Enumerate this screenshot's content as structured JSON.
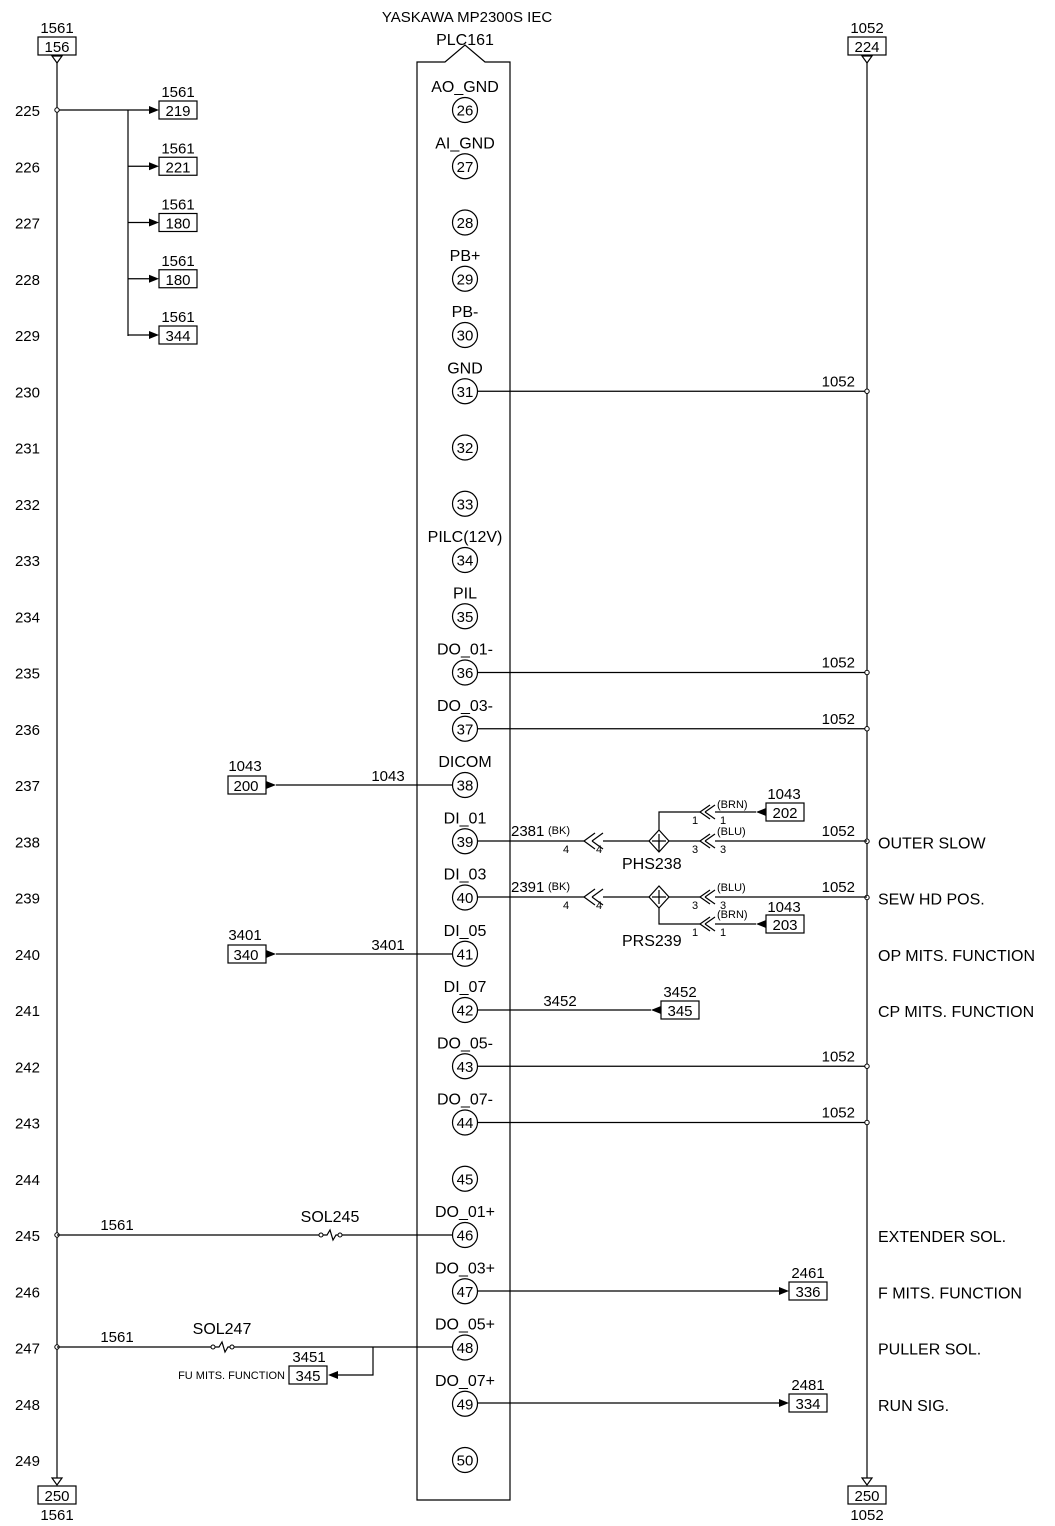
{
  "plc": {
    "title": "YASKAWA MP2300S IEC",
    "id": "PLC161"
  },
  "left_rail": {
    "top_ref_num": "1561",
    "top_ref_page": "156",
    "bottom_ref_num": "1561",
    "bottom_ref_page": "250"
  },
  "right_rail": {
    "top_ref_num": "1052",
    "top_ref_page": "224",
    "bottom_ref_num": "1052",
    "bottom_ref_page": "250"
  },
  "rows": [
    {
      "num": "225",
      "pin": "26",
      "label": "AO_GND",
      "desc": ""
    },
    {
      "num": "226",
      "pin": "27",
      "label": "AI_GND",
      "desc": ""
    },
    {
      "num": "227",
      "pin": "28",
      "label": "",
      "desc": ""
    },
    {
      "num": "228",
      "pin": "29",
      "label": "PB+",
      "desc": ""
    },
    {
      "num": "229",
      "pin": "30",
      "label": "PB-",
      "desc": ""
    },
    {
      "num": "230",
      "pin": "31",
      "label": "GND",
      "desc": ""
    },
    {
      "num": "231",
      "pin": "32",
      "label": "",
      "desc": ""
    },
    {
      "num": "232",
      "pin": "33",
      "label": "",
      "desc": ""
    },
    {
      "num": "233",
      "pin": "34",
      "label": "PILC(12V)",
      "desc": ""
    },
    {
      "num": "234",
      "pin": "35",
      "label": "PIL",
      "desc": ""
    },
    {
      "num": "235",
      "pin": "36",
      "label": "DO_01-",
      "desc": ""
    },
    {
      "num": "236",
      "pin": "37",
      "label": "DO_03-",
      "desc": ""
    },
    {
      "num": "237",
      "pin": "38",
      "label": "DICOM",
      "desc": ""
    },
    {
      "num": "238",
      "pin": "39",
      "label": "DI_01",
      "desc": "OUTER SLOW"
    },
    {
      "num": "239",
      "pin": "40",
      "label": "DI_03",
      "desc": "SEW HD POS."
    },
    {
      "num": "240",
      "pin": "41",
      "label": "DI_05",
      "desc": "OP MITS. FUNCTION"
    },
    {
      "num": "241",
      "pin": "42",
      "label": "DI_07",
      "desc": "CP MITS. FUNCTION"
    },
    {
      "num": "242",
      "pin": "43",
      "label": "DO_05-",
      "desc": ""
    },
    {
      "num": "243",
      "pin": "44",
      "label": "DO_07-",
      "desc": ""
    },
    {
      "num": "244",
      "pin": "45",
      "label": "",
      "desc": ""
    },
    {
      "num": "245",
      "pin": "46",
      "label": "DO_01+",
      "desc": "EXTENDER SOL."
    },
    {
      "num": "246",
      "pin": "47",
      "label": "DO_03+",
      "desc": "F MITS. FUNCTION"
    },
    {
      "num": "247",
      "pin": "48",
      "label": "DO_05+",
      "desc": "PULLER SOL."
    },
    {
      "num": "248",
      "pin": "49",
      "label": "DO_07+",
      "desc": "RUN SIG."
    },
    {
      "num": "249",
      "pin": "50",
      "label": "",
      "desc": ""
    }
  ],
  "branch_refs": [
    {
      "num": "1561",
      "page": "219"
    },
    {
      "num": "1561",
      "page": "221"
    },
    {
      "num": "1561",
      "page": "180"
    },
    {
      "num": "1561",
      "page": "180"
    },
    {
      "num": "1561",
      "page": "344"
    }
  ],
  "wire_1052": "1052",
  "dicom_ref": {
    "num": "1043",
    "page": "200",
    "wire": "1043"
  },
  "di05_ref": {
    "num": "3401",
    "page": "340",
    "wire": "3401"
  },
  "di07_ref": {
    "num": "3452",
    "page": "345",
    "wire": "3452"
  },
  "do03p_ref": {
    "num": "2461",
    "page": "336"
  },
  "do07p_ref": {
    "num": "2481",
    "page": "334"
  },
  "sensor_phs": {
    "name": "PHS238",
    "wire": "2381",
    "color_tag": "(BK)",
    "brn": "(BRN)",
    "blu": "(BLU)",
    "ref_num": "1043",
    "ref_page": "202",
    "pin4": "4",
    "pin1": "1",
    "pin3": "3"
  },
  "sensor_prs": {
    "name": "PRS239",
    "wire": "2391",
    "color_tag": "(BK)",
    "brn": "(BRN)",
    "blu": "(BLU)",
    "ref_num": "1043",
    "ref_page": "203",
    "pin4": "4",
    "pin1": "1",
    "pin3": "3"
  },
  "sol245": {
    "name": "SOL245",
    "wire": "1561"
  },
  "sol247": {
    "name": "SOL247",
    "wire": "1561",
    "fu_label": "FU MITS. FUNCTION",
    "fu_num": "3451",
    "fu_page": "345"
  }
}
